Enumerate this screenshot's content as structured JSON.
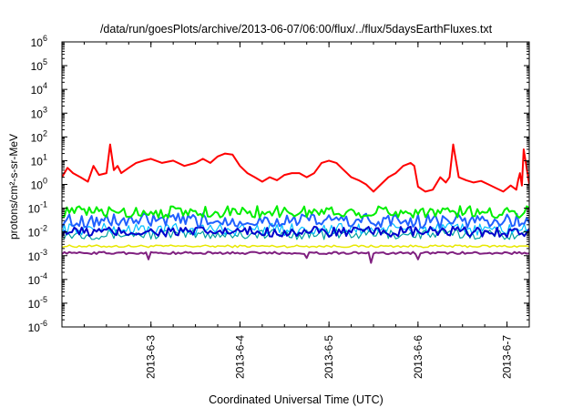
{
  "chart_data": {
    "type": "line",
    "title": "/data/run/goesPlots/archive/2013-06-07/06:00/flux/../flux/5daysEarthFluxes.txt",
    "xlabel": "Coordinated Universal Time (UTC)",
    "ylabel": "protons/cm²-s-sr-MeV",
    "y_scale": "log",
    "ylim": [
      1e-06,
      1000000.0
    ],
    "xlim": [
      "2013-06-02T00:00",
      "2013-06-07T06:00"
    ],
    "y_ticks": [
      {
        "value": 1e-06,
        "base": "10",
        "exp": "-6"
      },
      {
        "value": 1e-05,
        "base": "10",
        "exp": "-5"
      },
      {
        "value": 0.0001,
        "base": "10",
        "exp": "-4"
      },
      {
        "value": 0.001,
        "base": "10",
        "exp": "-3"
      },
      {
        "value": 0.01,
        "base": "10",
        "exp": "-2"
      },
      {
        "value": 0.1,
        "base": "10",
        "exp": "-1"
      },
      {
        "value": 1,
        "base": "10",
        "exp": "0"
      },
      {
        "value": 10,
        "base": "10",
        "exp": "1"
      },
      {
        "value": 100,
        "base": "10",
        "exp": "2"
      },
      {
        "value": 1000,
        "base": "10",
        "exp": "3"
      },
      {
        "value": 10000,
        "base": "10",
        "exp": "4"
      },
      {
        "value": 100000,
        "base": "10",
        "exp": "5"
      },
      {
        "value": 1000000,
        "base": "10",
        "exp": "6"
      }
    ],
    "x_ticks": [
      {
        "value": "2013-06-03T00:00",
        "label": "2013-6-3"
      },
      {
        "value": "2013-06-04T00:00",
        "label": "2013-6-4"
      },
      {
        "value": "2013-06-05T00:00",
        "label": "2013-6-5"
      },
      {
        "value": "2013-06-06T00:00",
        "label": "2013-6-6"
      },
      {
        "value": "2013-06-07T00:00",
        "label": "2013-6-7"
      }
    ],
    "legend": "none",
    "grid": false,
    "series": [
      {
        "color": "#e8e800",
        "width": 1.5,
        "jitter": 0.05,
        "x": [
          "2013-06-02T00:00",
          "2013-06-03T00:00",
          "2013-06-04T00:00",
          "2013-06-05T00:00",
          "2013-06-06T00:00",
          "2013-06-07T00:00",
          "2013-06-07T06:00"
        ],
        "y": [
          0.0025,
          0.0025,
          0.0025,
          0.0025,
          0.0025,
          0.0025,
          0.0025
        ]
      },
      {
        "color": "#00a0a0",
        "width": 1.2,
        "jitter": 0.22,
        "x": [
          "2013-06-02T00:00",
          "2013-06-03T00:00",
          "2013-06-04T00:00",
          "2013-06-05T00:00",
          "2013-06-06T00:00",
          "2013-06-07T00:00",
          "2013-06-07T06:00"
        ],
        "y": [
          0.008,
          0.008,
          0.008,
          0.008,
          0.008,
          0.008,
          0.008
        ]
      },
      {
        "color": "#00c0ff",
        "width": 1.2,
        "jitter": 0.25,
        "x": [
          "2013-06-02T00:00",
          "2013-06-03T00:00",
          "2013-06-04T00:00",
          "2013-06-05T00:00",
          "2013-06-06T00:00",
          "2013-06-07T00:00",
          "2013-06-07T06:00"
        ],
        "y": [
          0.013,
          0.013,
          0.013,
          0.013,
          0.013,
          0.013,
          0.013
        ]
      },
      {
        "color": "#0000cc",
        "width": 2,
        "jitter": 0.22,
        "x": [
          "2013-06-02T00:00",
          "2013-06-03T00:00",
          "2013-06-04T00:00",
          "2013-06-05T00:00",
          "2013-06-06T00:00",
          "2013-06-07T00:00",
          "2013-06-07T06:00"
        ],
        "y": [
          0.01,
          0.01,
          0.01,
          0.01,
          0.01,
          0.01,
          0.01
        ]
      },
      {
        "color": "#2060ff",
        "width": 2,
        "jitter": 0.3,
        "x": [
          "2013-06-02T00:00",
          "2013-06-03T00:00",
          "2013-06-04T00:00",
          "2013-06-05T00:00",
          "2013-06-06T00:00",
          "2013-06-07T00:00",
          "2013-06-07T06:00"
        ],
        "y": [
          0.03,
          0.03,
          0.03,
          0.03,
          0.03,
          0.03,
          0.03
        ]
      },
      {
        "color": "#00ee00",
        "width": 2,
        "jitter": 0.25,
        "x": [
          "2013-06-02T00:00",
          "2013-06-03T00:00",
          "2013-06-04T00:00",
          "2013-06-05T00:00",
          "2013-06-06T00:00",
          "2013-06-07T00:00",
          "2013-06-07T06:00"
        ],
        "y": [
          0.07,
          0.07,
          0.07,
          0.07,
          0.07,
          0.07,
          0.07
        ]
      },
      {
        "color": "#802080",
        "width": 2,
        "jitter": 0.05,
        "x": [
          "2013-06-02T00:00",
          "2013-06-03T00:00",
          "2013-06-04T00:00",
          "2013-06-05T00:00",
          "2013-06-06T00:00",
          "2013-06-07T00:00",
          "2013-06-07T06:00"
        ],
        "y": [
          0.0013,
          0.0013,
          0.0013,
          0.0013,
          0.0013,
          0.0013,
          0.0013
        ],
        "spikes": [
          {
            "x": "2013-06-02T23:30",
            "y": 0.0007
          },
          {
            "x": "2013-06-04T18:00",
            "y": 0.0008
          },
          {
            "x": "2013-06-05T11:30",
            "y": 0.0005
          },
          {
            "x": "2013-06-06T00:00",
            "y": 0.0007
          }
        ]
      },
      {
        "color": "#ff0000",
        "width": 2,
        "jitter": 0,
        "x": [
          "2013-06-02T00:00",
          "2013-06-02T01:30",
          "2013-06-02T03:00",
          "2013-06-02T05:00",
          "2013-06-02T07:00",
          "2013-06-02T08:30",
          "2013-06-02T10:00",
          "2013-06-02T12:00",
          "2013-06-02T13:00",
          "2013-06-02T14:00",
          "2013-06-02T15:00",
          "2013-06-02T16:00",
          "2013-06-02T18:00",
          "2013-06-02T20:00",
          "2013-06-02T22:00",
          "2013-06-03T00:00",
          "2013-06-03T03:00",
          "2013-06-03T06:00",
          "2013-06-03T09:00",
          "2013-06-03T12:00",
          "2013-06-03T14:00",
          "2013-06-03T16:00",
          "2013-06-03T18:00",
          "2013-06-03T20:00",
          "2013-06-03T22:00",
          "2013-06-04T00:00",
          "2013-06-04T02:00",
          "2013-06-04T04:00",
          "2013-06-04T06:00",
          "2013-06-04T08:00",
          "2013-06-04T10:00",
          "2013-06-04T12:00",
          "2013-06-04T14:00",
          "2013-06-04T16:00",
          "2013-06-04T18:00",
          "2013-06-04T20:00",
          "2013-06-04T22:00",
          "2013-06-05T00:00",
          "2013-06-05T02:00",
          "2013-06-05T04:00",
          "2013-06-05T06:00",
          "2013-06-05T08:00",
          "2013-06-05T10:00",
          "2013-06-05T12:00",
          "2013-06-05T14:00",
          "2013-06-05T16:00",
          "2013-06-05T18:00",
          "2013-06-05T20:00",
          "2013-06-05T22:00",
          "2013-06-05T23:00",
          "2013-06-06T00:00",
          "2013-06-06T02:00",
          "2013-06-06T04:00",
          "2013-06-06T06:00",
          "2013-06-06T07:30",
          "2013-06-06T08:30",
          "2013-06-06T09:30",
          "2013-06-06T11:00",
          "2013-06-06T13:00",
          "2013-06-06T15:00",
          "2013-06-06T17:00",
          "2013-06-06T19:00",
          "2013-06-06T21:00",
          "2013-06-06T23:00",
          "2013-06-07T01:00",
          "2013-06-07T02:30",
          "2013-06-07T03:00",
          "2013-06-07T03:30",
          "2013-06-07T04:00",
          "2013-06-07T04:30",
          "2013-06-07T06:00"
        ],
        "y": [
          2,
          5,
          3,
          2,
          1.3,
          6,
          2.5,
          3,
          48,
          4,
          6,
          3,
          5,
          8,
          10,
          12,
          8,
          10,
          6,
          8,
          12,
          8,
          15,
          20,
          18,
          6,
          3,
          2,
          1.3,
          2,
          1.5,
          2.5,
          3,
          3,
          2,
          3,
          8,
          10,
          8,
          4,
          2,
          1.5,
          1,
          0.5,
          1,
          2,
          3,
          6,
          8,
          6,
          0.8,
          0.5,
          0.6,
          2,
          1.2,
          2,
          48,
          2,
          1.5,
          1.2,
          1.4,
          1,
          0.7,
          0.5,
          0.9,
          0.6,
          1.5,
          3,
          0.9,
          30,
          1
        ]
      }
    ]
  }
}
